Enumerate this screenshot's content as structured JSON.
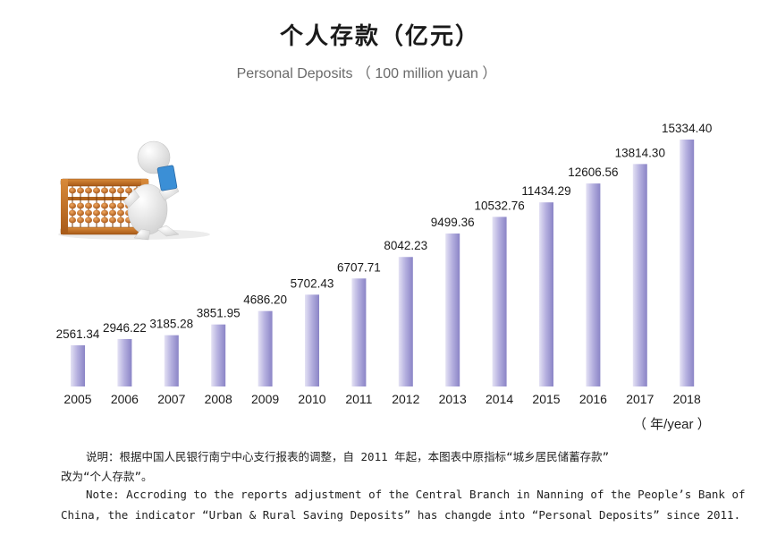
{
  "title": "个人存款（亿元）",
  "subtitle": "Personal Deposits （ 100 million yuan ）",
  "unit_label": "（ 年/year ）",
  "notes": {
    "cn_line1": "说明：根据中国人民银行南宁中心支行报表的调整，自 2011 年起，本图表中原指标“城乡居民储蓄存款”",
    "cn_line2": "改为“个人存款”。",
    "en_line1": "Note:  Accroding to the reports adjustment of the Central Branch in Nanning of the People’s Bank of",
    "en_line2": "China, the indicator “Urban & Rural Saving Deposits” has changde into “Personal Deposits” since 2011."
  },
  "colors": {
    "bar_light": "#e4e2f4",
    "bar_dark": "#8a84c6",
    "text": "#1a1a1a"
  },
  "illustration": "person-with-abacus",
  "chart_data": {
    "type": "bar",
    "title": "个人存款（亿元）",
    "subtitle": "Personal Deposits （ 100 million yuan ）",
    "xlabel": "（ 年/year ）",
    "ylabel": "",
    "categories": [
      "2005",
      "2006",
      "2007",
      "2008",
      "2009",
      "2010",
      "2011",
      "2012",
      "2013",
      "2014",
      "2015",
      "2016",
      "2017",
      "2018"
    ],
    "values": [
      2561.34,
      2946.22,
      3185.28,
      3851.95,
      4686.2,
      5702.43,
      6707.71,
      8042.23,
      9499.36,
      10532.76,
      11434.29,
      12606.56,
      13814.3,
      15334.4
    ],
    "value_labels": [
      "2561.34",
      "2946.22",
      "3185.28",
      "3851.95",
      "4686.20",
      "5702.43",
      "6707.71",
      "8042.23",
      "9499.36",
      "10532.76",
      "11434.29",
      "12606.56",
      "13814.30",
      "15334.40"
    ],
    "ylim": [
      0,
      15334.4
    ],
    "grid": false,
    "legend": "none"
  }
}
